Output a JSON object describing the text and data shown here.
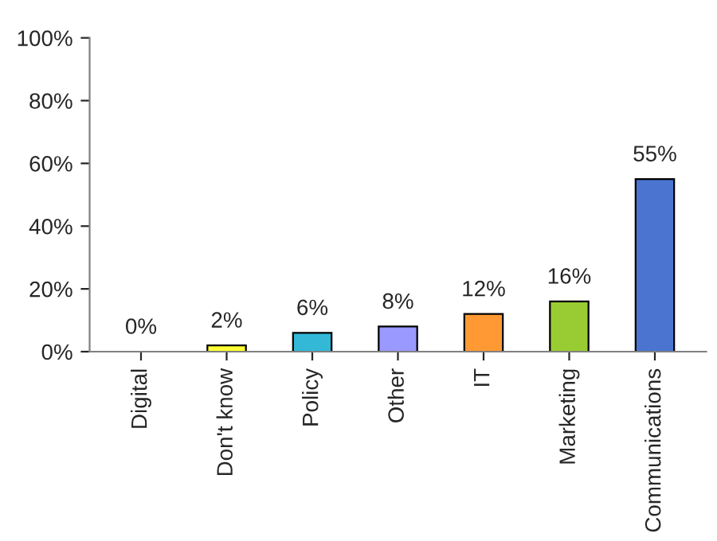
{
  "chart_data": {
    "type": "bar",
    "categories": [
      "Digital",
      "Don't know",
      "Policy",
      "Other",
      "IT",
      "Marketing",
      "Communications"
    ],
    "values": [
      0,
      2,
      6,
      8,
      12,
      16,
      55
    ],
    "colors": [
      "#000000",
      "#ffff33",
      "#33b8d8",
      "#9999ff",
      "#ff9933",
      "#99cc33",
      "#4a74d0"
    ],
    "value_labels": [
      "0%",
      "2%",
      "6%",
      "8%",
      "12%",
      "16%",
      "55%"
    ],
    "ylim": [
      0,
      100
    ],
    "yticks": [
      {
        "value": 0,
        "label": "0%"
      },
      {
        "value": 20,
        "label": "20%"
      },
      {
        "value": 40,
        "label": "40%"
      },
      {
        "value": 60,
        "label": "60%"
      },
      {
        "value": 80,
        "label": "80%"
      },
      {
        "value": 100,
        "label": "100%"
      }
    ],
    "grid": false,
    "legend": false
  }
}
